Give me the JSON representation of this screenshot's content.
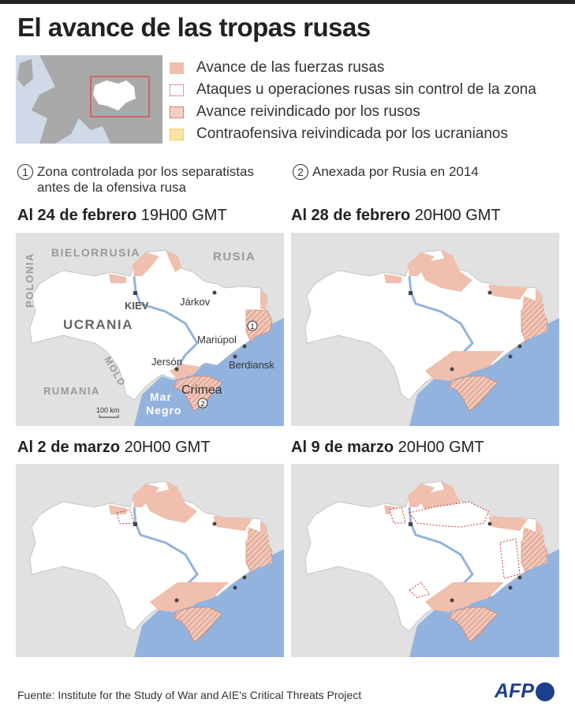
{
  "title": "El avance de las tropas rusas",
  "colors": {
    "russian_advance": "#f0bfae",
    "attack_outline": "#c0392b",
    "claimed": "#eec0b0",
    "counter": "#fbe3a0",
    "sea": "#93b3df",
    "land": "#ffffff",
    "neighbor": "#e1e1e1"
  },
  "legend": [
    {
      "label": "Avance de las fuerzas rusas",
      "style": "fill"
    },
    {
      "label": "Ataques u operaciones rusas sin control de la zona",
      "style": "dotted-outline"
    },
    {
      "label": "Avance reivindicado por los rusos",
      "style": "hatched"
    },
    {
      "label": "Contraofensiva reivindicada por los ucranianos",
      "style": "yellow"
    }
  ],
  "notes": [
    {
      "num": "1",
      "text": "Zona controlada por los separatistas antes de la ofensiva rusa"
    },
    {
      "num": "2",
      "text": "Anexada por Rusia en 2014"
    }
  ],
  "panels": [
    {
      "date": "Al 24 de febrero",
      "time": "19H00 GMT"
    },
    {
      "date": "Al 28 de febrero",
      "time": "20H00 GMT"
    },
    {
      "date": "Al 2 de marzo",
      "time": "20H00 GMT"
    },
    {
      "date": "Al 9 de marzo",
      "time": "20H00 GMT"
    }
  ],
  "map_labels": {
    "countries": {
      "belarus": "BIELORRUSIA",
      "russia": "RUSIA",
      "poland": "POLONIA",
      "ukraine": "UCRANIA",
      "moldova": "MOLD",
      "romania": "RUMANIA"
    },
    "cities": {
      "kiev": "KIEV",
      "kharkiv": "Járkov",
      "mariupol": "Mariúpol",
      "kherson": "Jersón",
      "berdiansk": "Berdiansk",
      "crimea": "Crimea"
    },
    "sea": {
      "line1": "Mar",
      "line2": "Negro"
    },
    "scale": "100 km",
    "marker1": "1",
    "marker2": "2"
  },
  "source": "Fuente: Institute for the Study of War and AIE's Critical Threats Project",
  "logo": "AFP"
}
